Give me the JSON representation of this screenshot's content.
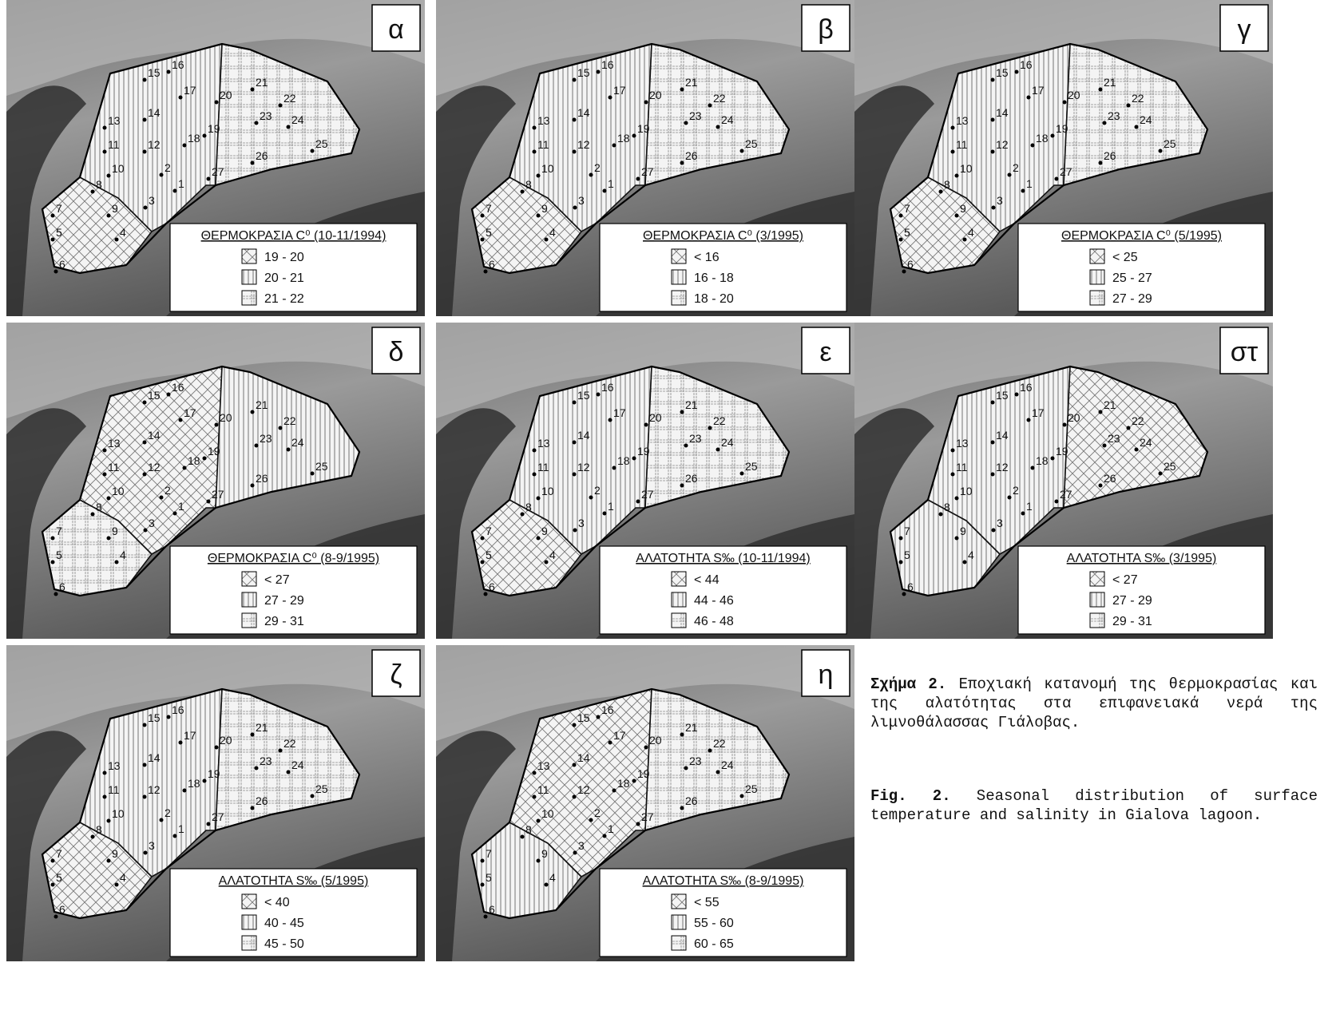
{
  "figure": {
    "stations": [
      "1",
      "2",
      "3",
      "4",
      "5",
      "6",
      "7",
      "8",
      "9",
      "10",
      "11",
      "12",
      "13",
      "14",
      "15",
      "16",
      "17",
      "18",
      "19",
      "20",
      "21",
      "22",
      "23",
      "24",
      "25",
      "26",
      "27"
    ],
    "panels": [
      {
        "label": "α",
        "legend": {
          "title": "ΘΕΡΜΟΚΡΑΣΙΑ C⁰ (10-11/1994)",
          "classes": [
            "19 - 20",
            "20 - 21",
            "21 - 22"
          ]
        }
      },
      {
        "label": "β",
        "legend": {
          "title": "ΘΕΡΜΟΚΡΑΣΙΑ C⁰ (3/1995)",
          "classes": [
            "< 16",
            "16 - 18",
            "18 - 20"
          ]
        }
      },
      {
        "label": "γ",
        "legend": {
          "title": "ΘΕΡΜΟΚΡΑΣΙΑ C⁰ (5/1995)",
          "classes": [
            "< 25",
            "25 - 27",
            "27 - 29"
          ]
        }
      },
      {
        "label": "δ",
        "legend": {
          "title": "ΘΕΡΜΟΚΡΑΣΙΑ C⁰ (8-9/1995)",
          "classes": [
            "< 27",
            "27 - 29",
            "29 - 31"
          ]
        }
      },
      {
        "label": "ε",
        "legend": {
          "title": "ΑΛΑΤΟΤΗΤΑ S‰ (10-11/1994)",
          "classes": [
            "< 44",
            "44 - 46",
            "46 - 48"
          ]
        }
      },
      {
        "label": "στ",
        "legend": {
          "title": "ΑΛΑΤΟΤΗΤΑ S‰ (3/1995)",
          "classes": [
            "< 27",
            "27 - 29",
            "29 - 31"
          ]
        }
      },
      {
        "label": "ζ",
        "legend": {
          "title": "ΑΛΑΤΟΤΗΤΑ S‰ (5/1995)",
          "classes": [
            "< 40",
            "40 - 45",
            "45 - 50"
          ]
        }
      },
      {
        "label": "η",
        "legend": {
          "title": "ΑΛΑΤΟΤΗΤΑ S‰ (8-9/1995)",
          "classes": [
            "< 55",
            "55 - 60",
            "60 - 65"
          ]
        }
      }
    ]
  },
  "caption": {
    "greek": {
      "label": "Σχήμα 2.",
      "text": "Εποχιακή κατανομή της θερμοκρασίας και της αλατότητας στα επιφανειακά νερά της λιμνοθάλασσας Γιάλοβας."
    },
    "english": {
      "label": "Fig. 2.",
      "text": "Seasonal distribution of surface temperature and salinity in Gialova lagoon."
    }
  }
}
